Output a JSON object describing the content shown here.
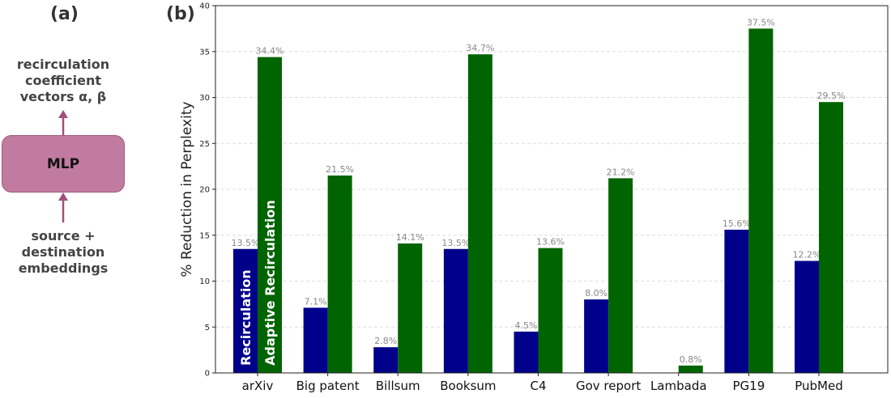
{
  "panel_a": {
    "label": "(a)",
    "output_lines": [
      "recirculation",
      "coefficient",
      "vectors α, β"
    ],
    "box_label": "MLP",
    "input_lines": [
      "source +",
      "destination",
      "embeddings"
    ],
    "arrow_color": "#a0507c",
    "box_color": "#c27ba0"
  },
  "panel_b": {
    "label": "(b)"
  },
  "chart_data": {
    "type": "bar",
    "categories": [
      "arXiv",
      "Big patent",
      "Billsum",
      "Booksum",
      "C4",
      "Gov report",
      "Lambada",
      "PG19",
      "PubMed"
    ],
    "series": [
      {
        "name": "Recirculation",
        "color": "#00008b",
        "values": [
          13.5,
          7.1,
          2.8,
          13.5,
          4.5,
          8.0,
          null,
          15.6,
          12.2
        ],
        "labels": [
          "13.5%",
          "7.1%",
          "2.8%",
          "13.5%",
          "4.5%",
          "8.0%",
          "",
          "15.6%",
          "12.2%"
        ]
      },
      {
        "name": "Adaptive Recirculation",
        "color": "#006400",
        "values": [
          34.4,
          21.5,
          14.1,
          34.7,
          13.6,
          21.2,
          0.8,
          37.5,
          29.5
        ],
        "labels": [
          "34.4%",
          "21.5%",
          "14.1%",
          "34.7%",
          "13.6%",
          "21.2%",
          "0.8%",
          "37.5%",
          "29.5%"
        ]
      }
    ],
    "ylabel": "% Reduction in Perplexity",
    "xlabel": "",
    "ylim": [
      0,
      40
    ],
    "yticks": [
      0,
      5,
      10,
      15,
      20,
      25,
      30,
      35,
      40
    ],
    "grid": true,
    "legend": "inside bars, rotated"
  }
}
